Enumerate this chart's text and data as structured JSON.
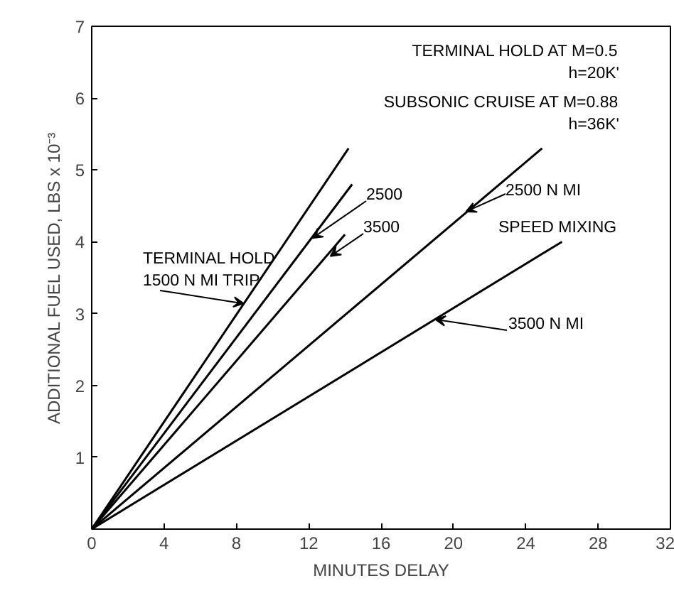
{
  "chart_data": {
    "type": "line",
    "xlabel": "MINUTES DELAY",
    "ylabel": "ADDITIONAL FUEL USED, LBS x 10⁻³",
    "xlim": [
      0,
      32
    ],
    "ylim": [
      0,
      7
    ],
    "xticks": [
      0,
      4,
      8,
      12,
      16,
      20,
      24,
      28,
      32
    ],
    "yticks": [
      1,
      2,
      3,
      4,
      5,
      6,
      7
    ],
    "grid": false,
    "marker": "none",
    "line_style": "solid",
    "series": [
      {
        "color": "#000000",
        "x": [
          0,
          14.2
        ],
        "values": [
          0,
          5.3
        ]
      },
      {
        "color": "#000000",
        "x": [
          0,
          14.4
        ],
        "values": [
          0,
          4.8
        ]
      },
      {
        "color": "#000000",
        "x": [
          0,
          14.0
        ],
        "values": [
          0,
          4.1
        ]
      },
      {
        "color": "#000000",
        "x": [
          0,
          24.9
        ],
        "values": [
          0,
          5.3
        ]
      },
      {
        "color": "#000000",
        "x": [
          0,
          26.0
        ],
        "values": [
          0,
          4.0
        ]
      }
    ],
    "annotations": [
      "TERMINAL HOLD AT M=0.5\nh=20K'",
      "SUBSONIC CRUISE AT M=0.88\nh=36K'",
      "SPEED MIXING",
      {
        "text": "TERMINAL HOLD\n1500 N MI TRIP",
        "x": 8.4,
        "y": 3.14
      },
      {
        "text": "2500",
        "x": 12.2,
        "y": 4.05
      },
      {
        "text": "3500",
        "x": 13.2,
        "y": 3.8
      },
      {
        "text": "2500 N MI",
        "x": 20.7,
        "y": 4.42
      },
      {
        "text": "3500 N MI",
        "x": 19.0,
        "y": 2.92
      }
    ]
  }
}
